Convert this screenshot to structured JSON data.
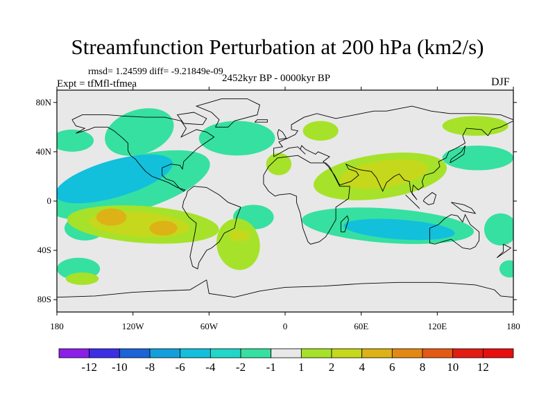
{
  "chart_data": {
    "type": "heatmap",
    "title": "Streamfunction Perturbation at 200 hPa (km2/s)",
    "stats_line": "rmsd= 1.24599 diff= -9.21849e-09",
    "experiment_line": "Expt = tfMfl-tfmea",
    "period": "2452kyr BP - 0000kyr BP",
    "season": "DJF",
    "x_axis": {
      "range": [
        -180,
        180
      ],
      "ticks": [
        {
          "value": -180,
          "label": "180"
        },
        {
          "value": -120,
          "label": "120W"
        },
        {
          "value": -60,
          "label": "60W"
        },
        {
          "value": 0,
          "label": "0"
        },
        {
          "value": 60,
          "label": "60E"
        },
        {
          "value": 120,
          "label": "120E"
        },
        {
          "value": 180,
          "label": "180"
        }
      ]
    },
    "y_axis": {
      "range": [
        -90,
        90
      ],
      "ticks": [
        {
          "value": 80,
          "label": "80N"
        },
        {
          "value": 40,
          "label": "40N"
        },
        {
          "value": 0,
          "label": "0"
        },
        {
          "value": -40,
          "label": "40S"
        },
        {
          "value": -80,
          "label": "80S"
        }
      ]
    },
    "colorbar": {
      "levels": [
        "-12",
        "-10",
        "-8",
        "-6",
        "-4",
        "-2",
        "-1",
        "1",
        "2",
        "4",
        "6",
        "8",
        "10",
        "12"
      ],
      "colors": [
        "#8b1ee8",
        "#3c2ee6",
        "#1b63d8",
        "#129fdc",
        "#12c0dc",
        "#22d7c8",
        "#36e0a0",
        "#e8e8e8",
        "#a6e22a",
        "#c6d81c",
        "#dcb216",
        "#e48814",
        "#e45a14",
        "#e41c14",
        "#e80e0e"
      ]
    },
    "regions": [
      {
        "level": "-2",
        "color": "#36e0a0",
        "lon": -115,
        "lat": 56,
        "rlon": 28,
        "rlat": 18,
        "rot": -18
      },
      {
        "level": "-2",
        "color": "#36e0a0",
        "lon": -168,
        "lat": 49,
        "rlon": 17,
        "rlat": 9,
        "rot": 0
      },
      {
        "level": "-2",
        "color": "#36e0a0",
        "lon": -38,
        "lat": 51,
        "rlon": 30,
        "rlat": 14,
        "rot": 0
      },
      {
        "level": "-2",
        "color": "#36e0a0",
        "lon": -123,
        "lat": 13,
        "rlon": 66,
        "rlat": 22,
        "rot": -16
      },
      {
        "level": "-4",
        "color": "#12c0dc",
        "lon": -135,
        "lat": 18,
        "rlon": 48,
        "rlat": 15,
        "rot": -16
      },
      {
        "level": "-2",
        "color": "#36e0a0",
        "lon": -25,
        "lat": -13,
        "rlon": 16,
        "rlat": 10,
        "rot": 0
      },
      {
        "level": "-2",
        "color": "#36e0a0",
        "lon": 81,
        "lat": -20,
        "rlon": 68,
        "rlat": 14,
        "rot": 4
      },
      {
        "level": "-4",
        "color": "#12c0dc",
        "lon": 90,
        "lat": -23,
        "rlon": 44,
        "rlat": 8,
        "rot": 4
      },
      {
        "level": "-2",
        "color": "#36e0a0",
        "lon": 170,
        "lat": -23,
        "rlon": 13,
        "rlat": 13,
        "rot": 0
      },
      {
        "level": "-2",
        "color": "#36e0a0",
        "lon": -158,
        "lat": -22,
        "rlon": 16,
        "rlat": 10,
        "rot": 0
      },
      {
        "level": "-2",
        "color": "#36e0a0",
        "lon": 152,
        "lat": 35,
        "rlon": 28,
        "rlat": 10,
        "rot": 0
      },
      {
        "level": "-2",
        "color": "#36e0a0",
        "lon": -163,
        "lat": -55,
        "rlon": 17,
        "rlat": 9,
        "rot": 0
      },
      {
        "level": "-2",
        "color": "#36e0a0",
        "lon": 177,
        "lat": -55,
        "rlon": 8,
        "rlat": 7,
        "rot": 0
      },
      {
        "level": "1",
        "color": "#a6e22a",
        "lon": 150,
        "lat": 61,
        "rlon": 26,
        "rlat": 8,
        "rot": 0
      },
      {
        "level": "1",
        "color": "#a6e22a",
        "lon": 28,
        "lat": 57,
        "rlon": 14,
        "rlat": 8,
        "rot": 0
      },
      {
        "level": "1",
        "color": "#a6e22a",
        "lon": -5,
        "lat": 30,
        "rlon": 10,
        "rlat": 9,
        "rot": 0
      },
      {
        "level": "1",
        "color": "#a6e22a",
        "lon": 75,
        "lat": 20,
        "rlon": 53,
        "rlat": 18,
        "rot": -8
      },
      {
        "level": "2",
        "color": "#c6d81c",
        "lon": 78,
        "lat": 22,
        "rlon": 35,
        "rlat": 11,
        "rot": -8
      },
      {
        "level": "1",
        "color": "#a6e22a",
        "lon": -112,
        "lat": -19,
        "rlon": 60,
        "rlat": 15,
        "rot": 4
      },
      {
        "level": "2",
        "color": "#c6d81c",
        "lon": -115,
        "lat": -19,
        "rlon": 40,
        "rlat": 10,
        "rot": 4
      },
      {
        "level": "4",
        "color": "#dcb216",
        "lon": -137,
        "lat": -13,
        "rlon": 12,
        "rlat": 7,
        "rot": 0
      },
      {
        "level": "4",
        "color": "#dcb216",
        "lon": -96,
        "lat": -22,
        "rlon": 11,
        "rlat": 6,
        "rot": 0
      },
      {
        "level": "1",
        "color": "#a6e22a",
        "lon": -37,
        "lat": -35,
        "rlon": 17,
        "rlat": 21,
        "rot": -10
      },
      {
        "level": "2",
        "color": "#c6d81c",
        "lon": -36,
        "lat": -28,
        "rlon": 8,
        "rlat": 5,
        "rot": 0
      },
      {
        "level": "1",
        "color": "#a6e22a",
        "lon": -160,
        "lat": -63,
        "rlon": 13,
        "rlat": 5,
        "rot": 0
      }
    ]
  }
}
